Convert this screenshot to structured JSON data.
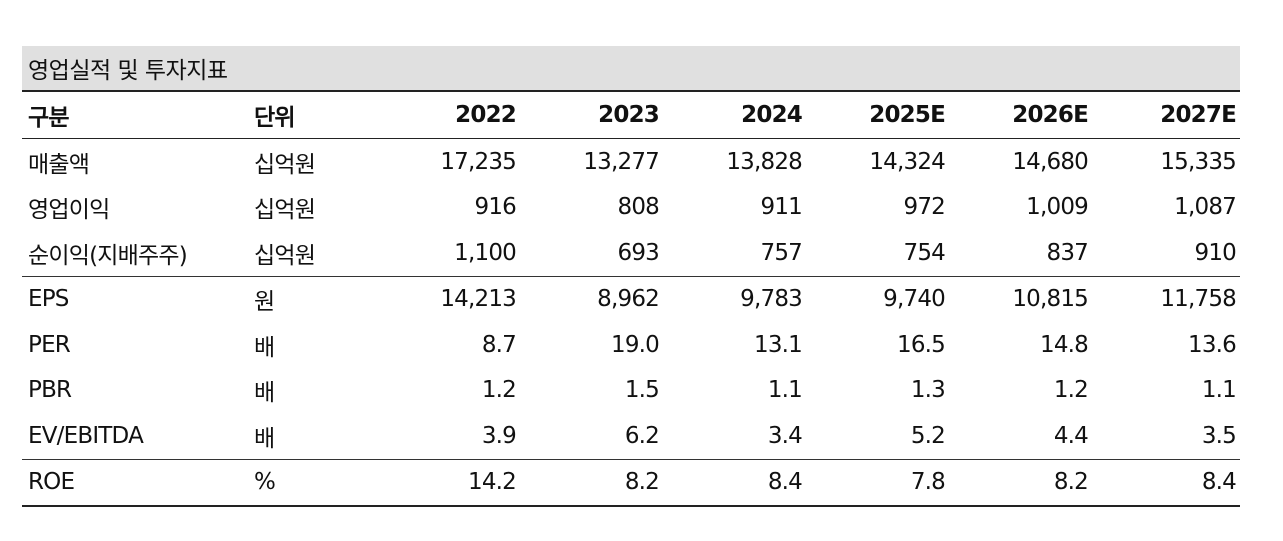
{
  "title": "영업실적 및 투자지표",
  "header": {
    "label": "구분",
    "unit": "단위",
    "years": [
      "2022",
      "2023",
      "2024",
      "2025E",
      "2026E",
      "2027E"
    ]
  },
  "rows": [
    {
      "label": "매출액",
      "unit": "십억원",
      "values": [
        "17,235",
        "13,277",
        "13,828",
        "14,324",
        "14,680",
        "15,335"
      ]
    },
    {
      "label": "영업이익",
      "unit": "십억원",
      "values": [
        "916",
        "808",
        "911",
        "972",
        "1,009",
        "1,087"
      ]
    },
    {
      "label": "순이익(지배주주)",
      "unit": "십억원",
      "values": [
        "1,100",
        "693",
        "757",
        "754",
        "837",
        "910"
      ]
    },
    {
      "label": "EPS",
      "unit": "원",
      "values": [
        "14,213",
        "8,962",
        "9,783",
        "9,740",
        "10,815",
        "11,758"
      ]
    },
    {
      "label": "PER",
      "unit": "배",
      "values": [
        "8.7",
        "19.0",
        "13.1",
        "16.5",
        "14.8",
        "13.6"
      ]
    },
    {
      "label": "PBR",
      "unit": "배",
      "values": [
        "1.2",
        "1.5",
        "1.1",
        "1.3",
        "1.2",
        "1.1"
      ]
    },
    {
      "label": "EV/EBITDA",
      "unit": "배",
      "values": [
        "3.9",
        "6.2",
        "3.4",
        "5.2",
        "4.4",
        "3.5"
      ]
    },
    {
      "label": "ROE",
      "unit": "%",
      "values": [
        "14.2",
        "8.2",
        "8.4",
        "7.8",
        "8.2",
        "8.4"
      ]
    }
  ]
}
